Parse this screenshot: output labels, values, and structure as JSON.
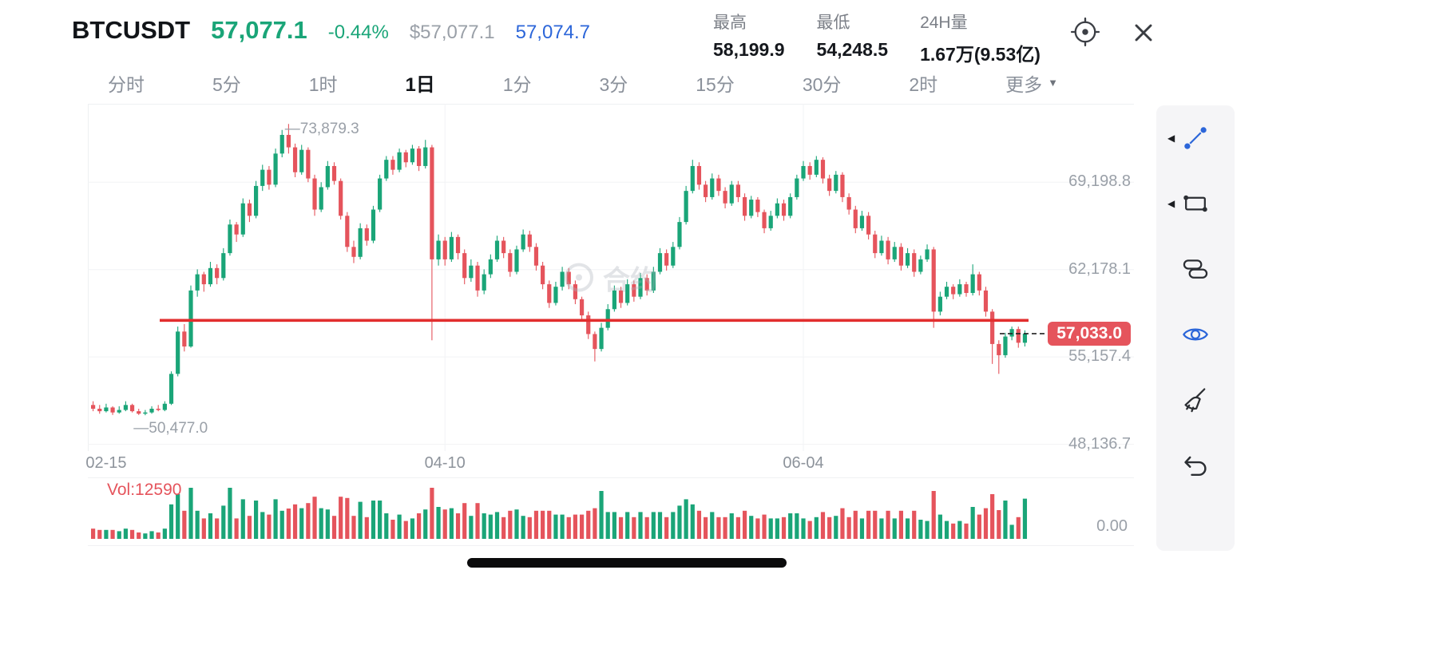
{
  "header": {
    "symbol": "BTCUSDT",
    "last_price": "57,077.1",
    "change_percent": "-0.44%",
    "usd_price": "$57,077.1",
    "index_price": "57,074.7",
    "stats": [
      {
        "label": "最高",
        "value": "58,199.9"
      },
      {
        "label": "最低",
        "value": "54,248.5"
      },
      {
        "label": "24H量",
        "value": "1.67万(9.53亿)"
      }
    ]
  },
  "timeframes": {
    "items": [
      {
        "label": "分时"
      },
      {
        "label": "5分"
      },
      {
        "label": "1时"
      },
      {
        "label": "1日",
        "active": true
      },
      {
        "label": "1分"
      },
      {
        "label": "3分"
      },
      {
        "label": "15分"
      },
      {
        "label": "30分"
      },
      {
        "label": "2时"
      },
      {
        "label": "更多",
        "dropdown": true
      }
    ]
  },
  "chart": {
    "high_annotation": "—73,879.3",
    "low_annotation": "—50,477.0",
    "price_tag": "57,033.0",
    "watermark": "合约",
    "y_axis_labels": [
      "69,198.8",
      "62,178.1",
      "55,157.4",
      "48,136.7"
    ],
    "x_axis_labels": [
      "02-15",
      "04-10",
      "06-04"
    ],
    "volume_label": "Vol:12590",
    "volume_axis_label": "0.00"
  },
  "colors": {
    "up": "#1aa578",
    "down": "#e5545c",
    "trendline": "#e22e2e",
    "price_tag_bg": "#e5545c",
    "accent_blue": "#2c66d9"
  },
  "chart_data": {
    "type": "candlestick",
    "symbol": "BTCUSDT",
    "interval": "1日",
    "y_ticks": [
      69198.8,
      62178.1,
      55157.4,
      48136.7
    ],
    "y_range": [
      47600,
      75500
    ],
    "x_ticks": [
      "02-15",
      "04-10",
      "06-04"
    ],
    "x_tick_indices": [
      2,
      54,
      109
    ],
    "marked_high": {
      "index": 30,
      "price": 73879.3
    },
    "marked_low": {
      "index": 8,
      "price": 50477.0
    },
    "trendline_price": 58100,
    "last_price": 57033.0,
    "volume_display": 12590,
    "candles": [
      [
        51300,
        51600,
        50800,
        51000,
        3200
      ],
      [
        51000,
        51300,
        50600,
        50800,
        2800
      ],
      [
        50800,
        51400,
        50700,
        51100,
        2800
      ],
      [
        51100,
        51200,
        50500,
        50700,
        2800
      ],
      [
        50700,
        51200,
        50600,
        50900,
        2400
      ],
      [
        50900,
        51600,
        50800,
        51300,
        3200
      ],
      [
        51300,
        51400,
        50700,
        50800,
        2800
      ],
      [
        50800,
        51000,
        50500,
        50600,
        2000
      ],
      [
        50600,
        50900,
        50477,
        50700,
        1700
      ],
      [
        50700,
        51200,
        50600,
        51000,
        2400
      ],
      [
        51000,
        51300,
        50800,
        50900,
        2000
      ],
      [
        50900,
        51600,
        50800,
        51400,
        3200
      ],
      [
        51400,
        54000,
        51300,
        53800,
        10800
      ],
      [
        53800,
        57600,
        53600,
        57200,
        14000
      ],
      [
        57200,
        57800,
        55600,
        56000,
        8800
      ],
      [
        56000,
        60900,
        55900,
        60500,
        16000
      ],
      [
        60500,
        62200,
        60000,
        61800,
        8800
      ],
      [
        61800,
        62000,
        60400,
        61000,
        6400
      ],
      [
        61000,
        62800,
        60800,
        62300,
        8000
      ],
      [
        62300,
        62600,
        61000,
        61500,
        6400
      ],
      [
        61500,
        63900,
        61300,
        63500,
        10400
      ],
      [
        63500,
        66200,
        63300,
        65800,
        16000
      ],
      [
        65800,
        66000,
        64400,
        65000,
        6400
      ],
      [
        65000,
        67900,
        64800,
        67500,
        12400
      ],
      [
        67500,
        67800,
        66000,
        66500,
        7200
      ],
      [
        66500,
        69300,
        66300,
        68900,
        12000
      ],
      [
        68900,
        70600,
        68500,
        70200,
        8400
      ],
      [
        70200,
        70500,
        68600,
        69000,
        7600
      ],
      [
        69000,
        71900,
        68800,
        71500,
        12400
      ],
      [
        71500,
        73400,
        71200,
        73000,
        8800
      ],
      [
        73000,
        73879.3,
        71500,
        72000,
        9500
      ],
      [
        72000,
        72300,
        69600,
        70000,
        10800
      ],
      [
        70000,
        72200,
        69800,
        71800,
        9600
      ],
      [
        71800,
        72000,
        69200,
        69500,
        11200
      ],
      [
        69500,
        69800,
        66500,
        67000,
        13200
      ],
      [
        67000,
        69200,
        66800,
        68800,
        9600
      ],
      [
        68800,
        70900,
        68600,
        70500,
        9200
      ],
      [
        70500,
        70800,
        69000,
        69300,
        7200
      ],
      [
        69300,
        69500,
        66200,
        66500,
        13200
      ],
      [
        66500,
        66800,
        63600,
        64000,
        12800
      ],
      [
        64000,
        64500,
        62700,
        63200,
        7200
      ],
      [
        63200,
        65900,
        63000,
        65500,
        11600
      ],
      [
        65500,
        65800,
        64100,
        64500,
        6800
      ],
      [
        64500,
        67300,
        64300,
        67000,
        12000
      ],
      [
        67000,
        69800,
        66800,
        69500,
        12000
      ],
      [
        69500,
        71300,
        69300,
        71000,
        8000
      ],
      [
        71000,
        71300,
        69800,
        70200,
        6000
      ],
      [
        70200,
        71900,
        70000,
        71600,
        7600
      ],
      [
        71600,
        71800,
        70400,
        70800,
        5600
      ],
      [
        70800,
        72200,
        70600,
        71900,
        6400
      ],
      [
        71900,
        72100,
        70100,
        70500,
        8000
      ],
      [
        70500,
        72600,
        70300,
        72000,
        9200
      ],
      [
        72000,
        72200,
        56500,
        63000,
        16000
      ],
      [
        63000,
        65000,
        62500,
        64500,
        10000
      ],
      [
        64500,
        64800,
        62500,
        63000,
        9200
      ],
      [
        63000,
        65200,
        62800,
        64800,
        9600
      ],
      [
        64800,
        65000,
        63000,
        63500,
        8000
      ],
      [
        63500,
        63800,
        61000,
        61500,
        11200
      ],
      [
        61500,
        63000,
        61200,
        62500,
        7200
      ],
      [
        62500,
        62800,
        60000,
        60500,
        11200
      ],
      [
        60500,
        62200,
        60200,
        61800,
        8000
      ],
      [
        61800,
        63400,
        61500,
        63000,
        7600
      ],
      [
        63000,
        64900,
        62800,
        64500,
        8400
      ],
      [
        64500,
        64800,
        63100,
        63500,
        6800
      ],
      [
        63500,
        63800,
        61600,
        62000,
        8800
      ],
      [
        62000,
        64100,
        61800,
        63800,
        9200
      ],
      [
        63800,
        65400,
        63600,
        65000,
        7200
      ],
      [
        65000,
        65300,
        63600,
        64000,
        6800
      ],
      [
        64000,
        64300,
        62100,
        62500,
        8800
      ],
      [
        62500,
        62800,
        60600,
        61000,
        8800
      ],
      [
        61000,
        61300,
        59100,
        59500,
        8800
      ],
      [
        59500,
        61200,
        59300,
        60800,
        7600
      ],
      [
        60800,
        62400,
        60500,
        62000,
        7600
      ],
      [
        62000,
        62300,
        60600,
        61000,
        6800
      ],
      [
        61000,
        61300,
        59400,
        59800,
        7600
      ],
      [
        59800,
        60000,
        58100,
        58500,
        7600
      ],
      [
        58500,
        58800,
        56600,
        57000,
        8800
      ],
      [
        57000,
        57200,
        54800,
        55800,
        9600
      ],
      [
        55800,
        57900,
        55600,
        57500,
        15000
      ],
      [
        57500,
        59400,
        57300,
        59000,
        8400
      ],
      [
        59000,
        60900,
        58800,
        60500,
        8400
      ],
      [
        60500,
        60800,
        59100,
        59500,
        6800
      ],
      [
        59500,
        61400,
        59300,
        61000,
        8400
      ],
      [
        61000,
        61300,
        59600,
        60000,
        6800
      ],
      [
        60000,
        61900,
        59800,
        61500,
        8400
      ],
      [
        61500,
        61800,
        60100,
        60500,
        6800
      ],
      [
        60500,
        62400,
        60300,
        62000,
        8400
      ],
      [
        62000,
        63900,
        61800,
        63500,
        8400
      ],
      [
        63500,
        63800,
        62100,
        62500,
        6800
      ],
      [
        62500,
        64400,
        62300,
        64000,
        8400
      ],
      [
        64000,
        66400,
        63800,
        66000,
        10400
      ],
      [
        66000,
        68900,
        65800,
        68500,
        12400
      ],
      [
        68500,
        71000,
        68300,
        70500,
        10800
      ],
      [
        70500,
        70800,
        68600,
        69000,
        8800
      ],
      [
        69000,
        69300,
        67600,
        68000,
        6800
      ],
      [
        68000,
        69900,
        67800,
        69500,
        8400
      ],
      [
        69500,
        69800,
        68100,
        68500,
        6800
      ],
      [
        68500,
        68800,
        67100,
        67500,
        6800
      ],
      [
        67500,
        69300,
        67300,
        69000,
        8000
      ],
      [
        69000,
        69300,
        67600,
        68000,
        6800
      ],
      [
        68000,
        68300,
        66100,
        66500,
        8800
      ],
      [
        66500,
        68100,
        66300,
        67800,
        7200
      ],
      [
        67800,
        68000,
        66400,
        66800,
        6400
      ],
      [
        66800,
        67000,
        65100,
        65500,
        7600
      ],
      [
        65500,
        66900,
        65300,
        66500,
        6400
      ],
      [
        66500,
        67900,
        66300,
        67500,
        6400
      ],
      [
        67500,
        67800,
        66100,
        66500,
        6800
      ],
      [
        66500,
        68300,
        66300,
        68000,
        8000
      ],
      [
        68000,
        69800,
        67800,
        69500,
        8000
      ],
      [
        69500,
        70900,
        69300,
        70500,
        6400
      ],
      [
        70500,
        70800,
        69400,
        69800,
        5600
      ],
      [
        69800,
        71300,
        69600,
        71000,
        6800
      ],
      [
        71000,
        71200,
        69100,
        69500,
        8400
      ],
      [
        69500,
        69800,
        68100,
        68500,
        6800
      ],
      [
        68500,
        70100,
        68300,
        69800,
        7200
      ],
      [
        69800,
        70000,
        67600,
        68000,
        9600
      ],
      [
        68000,
        68300,
        66600,
        67000,
        6800
      ],
      [
        67000,
        67300,
        65100,
        65500,
        8800
      ],
      [
        65500,
        66900,
        65300,
        66500,
        6400
      ],
      [
        66500,
        66800,
        64600,
        65000,
        8800
      ],
      [
        65000,
        65300,
        63100,
        63500,
        8800
      ],
      [
        63500,
        64900,
        63300,
        64500,
        6400
      ],
      [
        64500,
        64800,
        62600,
        63000,
        8800
      ],
      [
        63000,
        64400,
        62800,
        64000,
        6400
      ],
      [
        64000,
        64300,
        62100,
        62500,
        8800
      ],
      [
        62500,
        63900,
        62300,
        63500,
        6400
      ],
      [
        63500,
        63800,
        61600,
        62000,
        8800
      ],
      [
        62000,
        63300,
        61800,
        63000,
        6000
      ],
      [
        63000,
        64200,
        62800,
        63800,
        5600
      ],
      [
        63800,
        64000,
        57500,
        58800,
        15000
      ],
      [
        58800,
        60400,
        58500,
        60000,
        7600
      ],
      [
        60000,
        61200,
        59800,
        60800,
        5600
      ],
      [
        60800,
        61000,
        59800,
        60200,
        4800
      ],
      [
        60200,
        61400,
        60000,
        61000,
        5600
      ],
      [
        61000,
        61200,
        60000,
        60300,
        4800
      ],
      [
        60300,
        62600,
        60100,
        61800,
        10000
      ],
      [
        61800,
        62000,
        60100,
        60500,
        7600
      ],
      [
        60500,
        60800,
        58400,
        58800,
        9600
      ],
      [
        58800,
        59000,
        54600,
        56200,
        14000
      ],
      [
        56200,
        56500,
        53800,
        55300,
        9000
      ],
      [
        55300,
        57100,
        55100,
        56800,
        12000
      ],
      [
        56800,
        57600,
        56500,
        57400,
        4400
      ],
      [
        57400,
        57600,
        55900,
        56300,
        6800
      ],
      [
        56300,
        57300,
        56000,
        57033,
        12590
      ]
    ]
  },
  "toolbar": {
    "tools": [
      {
        "name": "trendline-tool",
        "icon": "trend-line-icon",
        "color": "#2c66d9",
        "expandable": true
      },
      {
        "name": "shape-tool",
        "icon": "rectangle-icon",
        "color": "#2b2e33",
        "expandable": true
      },
      {
        "name": "pattern-tool",
        "icon": "layers-icon",
        "color": "#2b2e33"
      },
      {
        "name": "visibility-tool",
        "icon": "eye-icon",
        "color": "#2c66d9",
        "active": true
      },
      {
        "name": "clear-drawings-tool",
        "icon": "broom-icon",
        "color": "#2b2e33"
      },
      {
        "name": "undo-tool",
        "icon": "undo-icon",
        "color": "#2b2e33"
      }
    ]
  }
}
